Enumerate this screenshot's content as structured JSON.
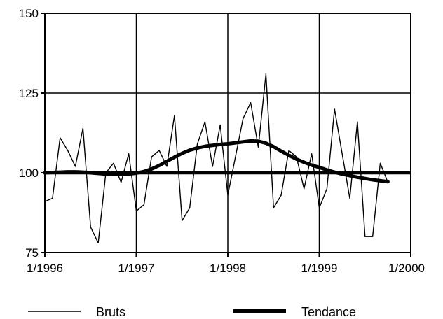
{
  "chart_data": {
    "type": "line",
    "x": [
      "1996-01",
      "1996-02",
      "1996-03",
      "1996-04",
      "1996-05",
      "1996-06",
      "1996-07",
      "1996-08",
      "1996-09",
      "1996-10",
      "1996-11",
      "1996-12",
      "1997-01",
      "1997-02",
      "1997-03",
      "1997-04",
      "1997-05",
      "1997-06",
      "1997-07",
      "1997-08",
      "1997-09",
      "1997-10",
      "1997-11",
      "1997-12",
      "1998-01",
      "1998-02",
      "1998-03",
      "1998-04",
      "1998-05",
      "1998-06",
      "1998-07",
      "1998-08",
      "1998-09",
      "1998-10",
      "1998-11",
      "1998-12",
      "1999-01",
      "1999-02",
      "1999-03",
      "1999-04",
      "1999-05",
      "1999-06",
      "1999-07",
      "1999-08",
      "1999-09",
      "1999-10"
    ],
    "xlim": [
      "1996-01",
      "2000-01"
    ],
    "ylim": [
      75,
      150
    ],
    "xticks": [
      "1/1996",
      "1/1997",
      "1/1998",
      "1/1999",
      "1/2000"
    ],
    "xtick_values": [
      "1996-01",
      "1997-01",
      "1998-01",
      "1999-01",
      "2000-01"
    ],
    "yticks": [
      75,
      100,
      125,
      150
    ],
    "grid": true,
    "legend_position": "bottom",
    "reference_line": 100,
    "series": [
      {
        "name": "Bruts",
        "color": "#000000",
        "style": "thin",
        "values": [
          91,
          92,
          111,
          107,
          102,
          114,
          83,
          78,
          100,
          103,
          97,
          106,
          88,
          90,
          105,
          107,
          102,
          118,
          85,
          89,
          109,
          116,
          102,
          115,
          93,
          105,
          117,
          122,
          108,
          131,
          89,
          93,
          107,
          105,
          95,
          106,
          89,
          95,
          120,
          106,
          92,
          116,
          80,
          80,
          103,
          97
        ]
      },
      {
        "name": "Tendance",
        "color": "#000000",
        "style": "thick",
        "values": [
          100,
          100.1,
          100.2,
          100.3,
          100.3,
          100.2,
          100,
          99.8,
          99.6,
          99.5,
          99.5,
          99.6,
          99.9,
          100.4,
          101.2,
          102.3,
          103.6,
          104.9,
          106.1,
          107.1,
          107.8,
          108.3,
          108.6,
          108.9,
          109.1,
          109.4,
          109.7,
          110,
          109.9,
          109.3,
          108.2,
          106.8,
          105.5,
          104.3,
          103.3,
          102.4,
          101.7,
          100.9,
          100.2,
          99.6,
          99.1,
          98.6,
          98.2,
          97.8,
          97.5,
          97.2
        ]
      }
    ]
  }
}
